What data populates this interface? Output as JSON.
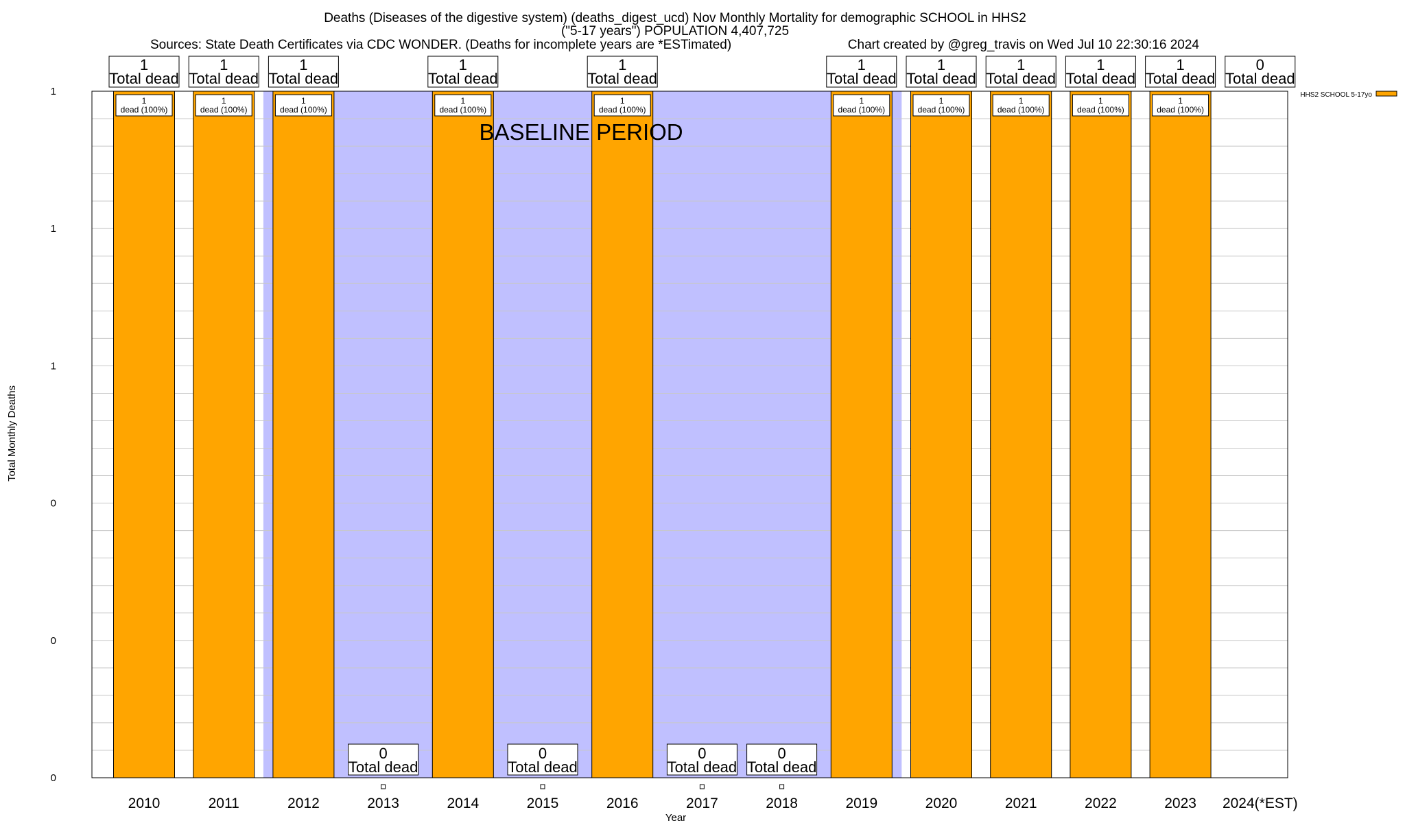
{
  "chart_data": {
    "type": "bar",
    "title_lines": [
      "Deaths (Diseases of the digestive system) (deaths_digest_ucd) Nov Monthly Mortality for demographic SCHOOL in HHS2",
      "(\"5-17 years\") POPULATION 4,407,725",
      "Sources: State Death Certificates via CDC WONDER. (Deaths for incomplete years are *ESTimated)"
    ],
    "credit": "Chart created by @greg_travis on Wed Jul 10 22:30:16 2024",
    "xlabel": "Year",
    "ylabel": "Total Monthly Deaths",
    "categories": [
      "2010",
      "2011",
      "2012",
      "2013",
      "2014",
      "2015",
      "2016",
      "2017",
      "2018",
      "2019",
      "2020",
      "2021",
      "2022",
      "2023",
      "2024(*EST)"
    ],
    "series": [
      {
        "name": "HHS2 SCHOOL 5-17yo",
        "color": "#ffa500",
        "values": [
          1,
          1,
          1,
          0,
          1,
          0,
          1,
          0,
          0,
          1,
          1,
          1,
          1,
          1,
          0
        ]
      }
    ],
    "top_labels": [
      "1",
      "1",
      "1",
      "",
      "1",
      "",
      "1",
      "",
      "",
      "1",
      "1",
      "1",
      "1",
      "1",
      "0"
    ],
    "top_label_suffix": "Total dead",
    "inner_labels": [
      "1\ndead (100%)",
      "1\ndead (100%)",
      "1\ndead (100%)",
      "",
      "1\ndead (100%)",
      "",
      "1\ndead (100%)",
      "",
      "",
      "1\ndead (100%)",
      "1\ndead (100%)",
      "1\ndead (100%)",
      "1\ndead (100%)",
      "1\ndead (100%)",
      ""
    ],
    "zero_labels": [
      "",
      "",
      "",
      "0",
      "",
      "0",
      "",
      "0",
      "0",
      "",
      "",
      "",
      "",
      "",
      ""
    ],
    "ylim": [
      0,
      1
    ],
    "ytick_labels": [
      "0",
      "0",
      "0",
      "1",
      "1",
      "1"
    ],
    "baseline_period": {
      "label": "BASELINE PERIOD",
      "start": "2012",
      "end": "2019"
    },
    "baseline_color": "#c0c0ff",
    "grid": true,
    "legend_position": "top-right"
  }
}
